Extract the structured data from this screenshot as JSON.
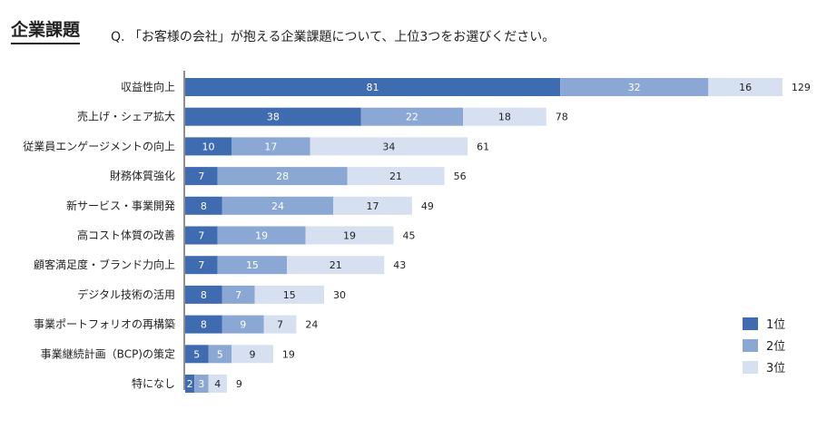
{
  "header": {
    "section_title": "企業課題",
    "question": "Q. 「お客様の会社」が抱える企業課題について、上位3つをお選びください。"
  },
  "chart_data": {
    "type": "bar",
    "orientation": "horizontal",
    "stacked": true,
    "title": "",
    "xlabel": "",
    "ylabel": "",
    "xlim": [
      0,
      130
    ],
    "grid": false,
    "legend_position": "bottom-right",
    "categories": [
      "収益性向上",
      "売上げ・シェア拡大",
      "従業員エンゲージメントの向上",
      "財務体質強化",
      "新サービス・事業開発",
      "高コスト体質の改善",
      "顧客満足度・ブランド力向上",
      "デジタル技術の活用",
      "事業ポートフォリオの再構築",
      "事業継続計画（BCP)の策定",
      "特になし"
    ],
    "series": [
      {
        "name": "1位",
        "color": "#3f6bb1",
        "label_color": "#ffffff",
        "values": [
          81,
          38,
          10,
          7,
          8,
          7,
          7,
          8,
          8,
          5,
          2
        ]
      },
      {
        "name": "2位",
        "color": "#8ba7d4",
        "label_color": "#ffffff",
        "values": [
          32,
          22,
          17,
          28,
          24,
          19,
          15,
          7,
          9,
          5,
          3
        ]
      },
      {
        "name": "3位",
        "color": "#d6e0f0",
        "label_color": "#222222",
        "values": [
          16,
          18,
          34,
          21,
          17,
          19,
          21,
          15,
          7,
          9,
          4
        ]
      }
    ],
    "totals": [
      129,
      78,
      61,
      56,
      49,
      45,
      43,
      30,
      24,
      19,
      9
    ]
  }
}
